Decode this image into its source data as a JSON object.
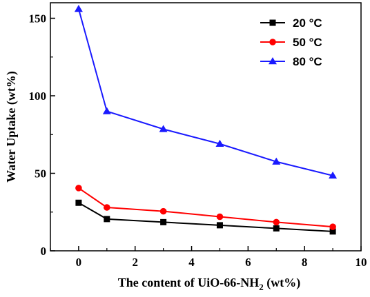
{
  "chart_data": {
    "type": "line",
    "title": "",
    "xlabel": "The content of UiO-66-NH",
    "xlabel_subscript": "2",
    "xlabel_suffix": " (wt%)",
    "ylabel": "Water Uptake (wt%)",
    "xlim": [
      -1,
      10
    ],
    "ylim": [
      0,
      160
    ],
    "x_ticks": [
      "0",
      "2",
      "4",
      "6",
      "8",
      "10"
    ],
    "y_ticks": [
      "0",
      "50",
      "100",
      "150"
    ],
    "x": [
      0,
      1,
      3,
      5,
      7,
      9
    ],
    "legend_position": "top-right",
    "grid": false,
    "series": [
      {
        "name": "20 °C",
        "color": "#000000",
        "marker": "square",
        "values": [
          31,
          20.5,
          18.5,
          16.5,
          14.5,
          12.5
        ]
      },
      {
        "name": "50 °C",
        "color": "#ff0000",
        "marker": "circle",
        "values": [
          40.5,
          28,
          25.5,
          22,
          18.5,
          15.5
        ]
      },
      {
        "name": "80 °C",
        "color": "#1a1aff",
        "marker": "triangle",
        "values": [
          156,
          90,
          78.5,
          69,
          57.5,
          48.5
        ]
      }
    ]
  }
}
